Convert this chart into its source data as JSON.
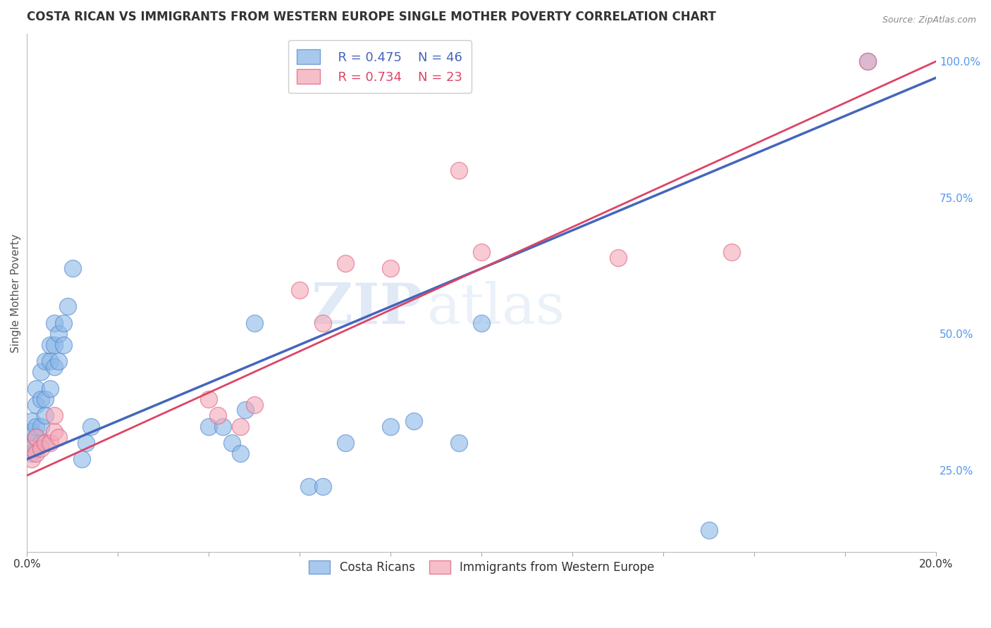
{
  "title": "COSTA RICAN VS IMMIGRANTS FROM WESTERN EUROPE SINGLE MOTHER POVERTY CORRELATION CHART",
  "source": "Source: ZipAtlas.com",
  "ylabel": "Single Mother Poverty",
  "xlim": [
    0.0,
    0.2
  ],
  "ylim": [
    0.1,
    1.05
  ],
  "xticks": [
    0.0,
    0.02,
    0.04,
    0.06,
    0.08,
    0.1,
    0.12,
    0.14,
    0.16,
    0.18,
    0.2
  ],
  "xticklabels": [
    "0.0%",
    "",
    "",
    "",
    "",
    "",
    "",
    "",
    "",
    "",
    "20.0%"
  ],
  "yticks_right": [
    0.25,
    0.5,
    0.75,
    1.0
  ],
  "yticklabels_right": [
    "25.0%",
    "50.0%",
    "75.0%",
    "100.0%"
  ],
  "legend_blue_label": "Costa Ricans",
  "legend_pink_label": "Immigrants from Western Europe",
  "legend_blue_r": "R = 0.475",
  "legend_blue_n": "N = 46",
  "legend_pink_r": "R = 0.734",
  "legend_pink_n": "N = 23",
  "watermark_zip": "ZIP",
  "watermark_atlas": "atlas",
  "blue_color": "#8BB8E8",
  "blue_edge_color": "#5588CC",
  "pink_color": "#F4A8B8",
  "pink_edge_color": "#E06080",
  "blue_line_color": "#4466BB",
  "pink_line_color": "#DD4466",
  "blue_r_color": "#4466BB",
  "pink_r_color": "#DD4466",
  "blue_points_x": [
    0.001,
    0.001,
    0.001,
    0.001,
    0.002,
    0.002,
    0.002,
    0.002,
    0.002,
    0.003,
    0.003,
    0.003,
    0.003,
    0.004,
    0.004,
    0.004,
    0.005,
    0.005,
    0.005,
    0.006,
    0.006,
    0.006,
    0.007,
    0.007,
    0.008,
    0.008,
    0.009,
    0.01,
    0.012,
    0.013,
    0.014,
    0.04,
    0.043,
    0.045,
    0.047,
    0.048,
    0.05,
    0.062,
    0.065,
    0.07,
    0.08,
    0.085,
    0.095,
    0.1,
    0.15,
    0.185
  ],
  "blue_points_y": [
    0.28,
    0.3,
    0.32,
    0.34,
    0.29,
    0.31,
    0.33,
    0.37,
    0.4,
    0.3,
    0.33,
    0.38,
    0.43,
    0.35,
    0.38,
    0.45,
    0.4,
    0.45,
    0.48,
    0.44,
    0.48,
    0.52,
    0.45,
    0.5,
    0.48,
    0.52,
    0.55,
    0.62,
    0.27,
    0.3,
    0.33,
    0.33,
    0.33,
    0.3,
    0.28,
    0.36,
    0.52,
    0.22,
    0.22,
    0.3,
    0.33,
    0.34,
    0.3,
    0.52,
    0.14,
    1.0
  ],
  "pink_points_x": [
    0.001,
    0.001,
    0.002,
    0.002,
    0.003,
    0.004,
    0.005,
    0.006,
    0.006,
    0.007,
    0.04,
    0.042,
    0.047,
    0.05,
    0.06,
    0.065,
    0.07,
    0.08,
    0.095,
    0.1,
    0.13,
    0.155,
    0.185
  ],
  "pink_points_y": [
    0.27,
    0.29,
    0.28,
    0.31,
    0.29,
    0.3,
    0.3,
    0.32,
    0.35,
    0.31,
    0.38,
    0.35,
    0.33,
    0.37,
    0.58,
    0.52,
    0.63,
    0.62,
    0.8,
    0.65,
    0.64,
    0.65,
    1.0
  ],
  "blue_line_x": [
    0.0,
    0.2
  ],
  "blue_line_y": [
    0.27,
    0.97
  ],
  "pink_line_x": [
    0.0,
    0.2
  ],
  "pink_line_y": [
    0.24,
    1.0
  ]
}
